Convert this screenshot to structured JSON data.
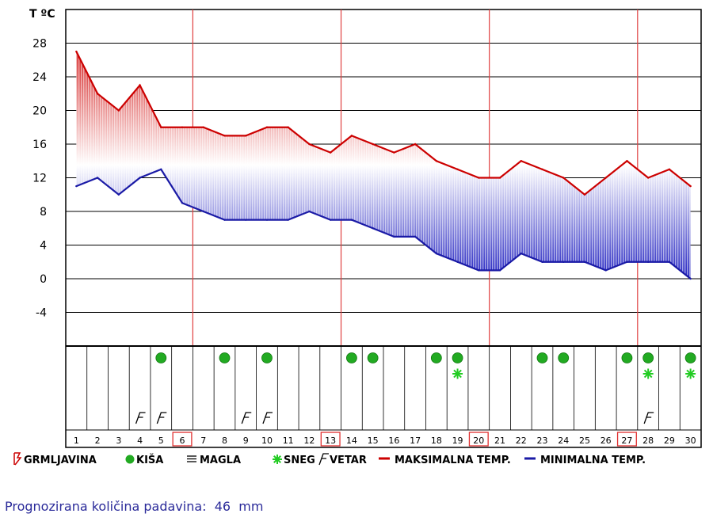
{
  "chart_data": {
    "type": "line",
    "yunit_label": "T ºC",
    "ylim": [
      -8,
      32
    ],
    "yticks": [
      28,
      24,
      20,
      16,
      12,
      8,
      4,
      0,
      -4
    ],
    "grid": true,
    "x": [
      1,
      2,
      3,
      4,
      5,
      6,
      7,
      8,
      9,
      10,
      11,
      12,
      13,
      14,
      15,
      16,
      17,
      18,
      19,
      20,
      21,
      22,
      23,
      24,
      25,
      26,
      27,
      28,
      29,
      30
    ],
    "highlighted_days": [
      6,
      13,
      20,
      27
    ],
    "series": [
      {
        "name": "MAKSIMALNA TEMP.",
        "color": "#cc0000",
        "values": [
          27,
          22,
          20,
          23,
          18,
          18,
          18,
          17,
          17,
          18,
          18,
          16,
          15,
          17,
          16,
          15,
          16,
          14,
          13,
          12,
          12,
          14,
          13,
          12,
          10,
          12,
          14,
          12,
          13,
          11
        ]
      },
      {
        "name": "MINIMALNA TEMP.",
        "color": "#1a1aa6",
        "values": [
          11,
          12,
          10,
          12,
          13,
          9,
          8,
          7,
          7,
          7,
          7,
          8,
          7,
          7,
          6,
          5,
          5,
          3,
          2,
          1,
          1,
          3,
          2,
          2,
          2,
          1,
          2,
          2,
          2,
          0
        ]
      }
    ],
    "symbols": {
      "rain": [
        5,
        8,
        10,
        14,
        15,
        18,
        19,
        23,
        24,
        27,
        28,
        30
      ],
      "snow": [
        19,
        28,
        30
      ],
      "wind": [
        4,
        5,
        9,
        10,
        28
      ]
    },
    "legend": [
      {
        "key": "thunder",
        "label": "GRMLJAVINA",
        "icon": "lightning-icon"
      },
      {
        "key": "rain",
        "label": "KIŠA",
        "icon": "rain-dot-icon",
        "color": "#22aa22"
      },
      {
        "key": "fog",
        "label": "MAGLA",
        "icon": "fog-lines-icon"
      },
      {
        "key": "snow",
        "label": "SNEG",
        "icon": "snowflake-icon",
        "color": "#22cc22"
      },
      {
        "key": "wind",
        "label": "VETAR",
        "icon": "wind-flag-icon"
      },
      {
        "key": "max",
        "label": "MAKSIMALNA TEMP.",
        "icon": "red-line-icon",
        "color": "#cc0000"
      },
      {
        "key": "min",
        "label": "MINIMALNA TEMP.",
        "icon": "blue-line-icon",
        "color": "#1a1aa6"
      }
    ]
  },
  "footer": {
    "label": "Prognozirana količina padavina:",
    "value": "46",
    "unit": "mm"
  }
}
